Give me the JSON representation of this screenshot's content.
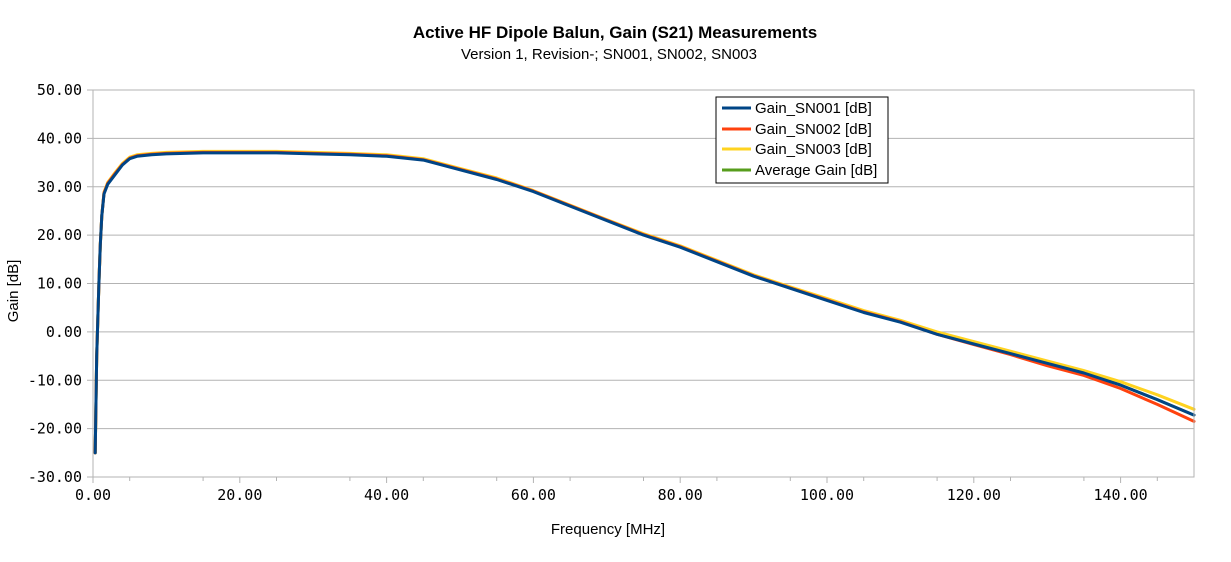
{
  "chart_data": {
    "type": "line",
    "title": "Active HF Dipole Balun, Gain (S21) Measurements",
    "subtitle": "Version 1, Revision-; SN001, SN002, SN003",
    "xlabel": "Frequency [MHz]",
    "ylabel": "Gain [dB]",
    "xlim": [
      0,
      150
    ],
    "ylim": [
      -30,
      50
    ],
    "xticks": [
      0,
      20,
      40,
      60,
      80,
      100,
      120,
      140
    ],
    "yticks": [
      -30,
      -20,
      -10,
      0,
      10,
      20,
      30,
      40,
      50
    ],
    "xtick_labels": [
      "0.00",
      "20.00",
      "40.00",
      "60.00",
      "80.00",
      "100.00",
      "120.00",
      "140.00"
    ],
    "ytick_labels": [
      "-30.00",
      "-20.00",
      "-10.00",
      "0.00",
      "10.00",
      "20.00",
      "30.00",
      "40.00",
      "50.00"
    ],
    "grid": true,
    "legend_position": "top-right",
    "x": [
      0.3,
      0.5,
      0.8,
      1.0,
      1.2,
      1.5,
      2,
      3,
      4,
      5,
      6,
      8,
      10,
      15,
      20,
      25,
      30,
      35,
      40,
      45,
      50,
      55,
      60,
      65,
      70,
      75,
      80,
      85,
      90,
      95,
      100,
      105,
      110,
      115,
      120,
      125,
      130,
      135,
      140,
      145,
      150
    ],
    "series": [
      {
        "name": "Gain_SN001 [dB]",
        "color": "#004586",
        "values": [
          -25,
          -5,
          10,
          18,
          24,
          28.5,
          30.5,
          32.5,
          34.5,
          35.8,
          36.3,
          36.6,
          36.8,
          37,
          37,
          37,
          36.8,
          36.6,
          36.3,
          35.5,
          33.5,
          31.5,
          29,
          26,
          23,
          20,
          17.5,
          14.5,
          11.5,
          9,
          6.5,
          4,
          2,
          -0.5,
          -2.5,
          -4.5,
          -6.5,
          -8.5,
          -11,
          -14,
          -17.2
        ]
      },
      {
        "name": "Gain_SN002 [dB]",
        "color": "#ff420e",
        "values": [
          -25,
          -5,
          10,
          18,
          24,
          28.7,
          30.7,
          32.7,
          34.6,
          35.9,
          36.4,
          36.7,
          36.9,
          37.1,
          37.1,
          37.1,
          36.9,
          36.7,
          36.4,
          35.6,
          33.6,
          31.6,
          29.1,
          26.1,
          23.1,
          20.1,
          17.6,
          14.6,
          11.6,
          9.1,
          6.6,
          4.1,
          2.1,
          -0.5,
          -2.6,
          -4.7,
          -7,
          -9,
          -11.7,
          -15,
          -18.5
        ]
      },
      {
        "name": "Gain_SN003 [dB]",
        "color": "#ffd320",
        "values": [
          -25,
          -5,
          10,
          18,
          24,
          28.9,
          30.9,
          32.9,
          34.8,
          36.1,
          36.6,
          36.9,
          37.1,
          37.3,
          37.3,
          37.3,
          37.1,
          36.9,
          36.6,
          35.8,
          33.8,
          31.8,
          29.2,
          26.2,
          23.2,
          20.3,
          17.8,
          14.8,
          11.8,
          9.3,
          6.9,
          4.4,
          2.4,
          0,
          -2,
          -4,
          -6,
          -8,
          -10.3,
          -13,
          -16
        ]
      },
      {
        "name": "Average Gain [dB]",
        "color": "#579d1c",
        "values": [
          -25,
          -5,
          10,
          18,
          24,
          28.7,
          30.7,
          32.7,
          34.6,
          35.9,
          36.4,
          36.7,
          36.9,
          37.1,
          37.1,
          37.1,
          36.9,
          36.7,
          36.4,
          35.6,
          33.6,
          31.6,
          29.1,
          26.1,
          23.1,
          20.1,
          17.6,
          14.6,
          11.6,
          9.1,
          6.7,
          4.2,
          2.2,
          -0.3,
          -2.4,
          -4.4,
          -6.5,
          -8.5,
          -11,
          -14,
          -17.2
        ]
      }
    ]
  }
}
